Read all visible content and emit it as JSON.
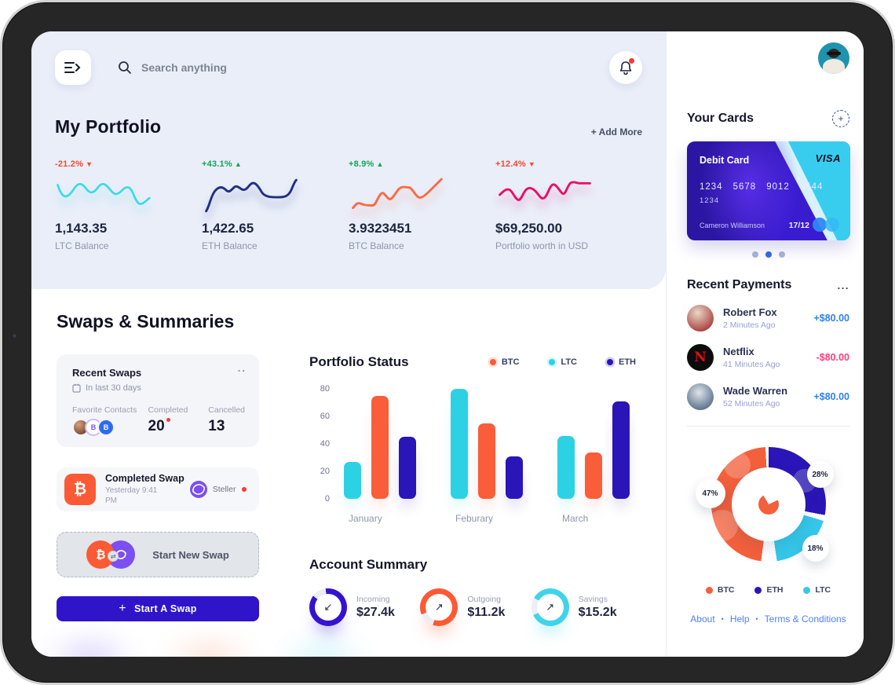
{
  "topbar": {
    "search_placeholder": "Search anything"
  },
  "portfolio": {
    "title": "My Portfolio",
    "add_more": "+ Add More",
    "assets": [
      {
        "change": "-21.2%",
        "arrow": "▼",
        "direction": "down",
        "value": "1,143.35",
        "label": "LTC Balance",
        "color": "#3fd9e8"
      },
      {
        "change": "+43.1%",
        "arrow": "▲",
        "direction": "up",
        "value": "1,422.65",
        "label": "ETH Balance",
        "color": "#203181"
      },
      {
        "change": "+8.9%",
        "arrow": "▲",
        "direction": "up",
        "value": "3.9323451",
        "label": "BTC Balance",
        "color": "#fb6a45"
      },
      {
        "change": "+12.4%",
        "arrow": "▼",
        "direction": "down",
        "value": "$69,250.00",
        "label": "Portfolio worth in USD",
        "color": "#e81069"
      }
    ]
  },
  "swaps": {
    "title": "Swaps & Summaries",
    "recent": {
      "title": "Recent Swaps",
      "menu": "..",
      "period": "In last 30 days",
      "favorites_label": "Favorite Contacts",
      "contact_initials": [
        "B",
        "B"
      ],
      "completed_label": "Completed",
      "completed_value": "20",
      "cancelled_label": "Cancelled",
      "cancelled_value": "13"
    },
    "completed_swap": {
      "icon": "₿",
      "title": "Completed Swap",
      "time": "Yesterday 9:41 PM",
      "network": "Steller"
    },
    "start_new": {
      "label": "Start New Swap",
      "coin_a": "₿",
      "swap_glyph": "⇄"
    },
    "cta": {
      "plus": "+",
      "label": "Start A Swap",
      "bg": "#2f14ca"
    }
  },
  "chart_data": [
    {
      "type": "bar",
      "title": "Portfolio Status",
      "categories": [
        "January",
        "Feburary",
        "March"
      ],
      "series": [
        {
          "name": "LTC",
          "color": "#2cd2e4",
          "values": [
            27,
            80,
            46
          ]
        },
        {
          "name": "BTC",
          "color": "#f95d39",
          "values": [
            75,
            55,
            34
          ]
        },
        {
          "name": "ETH",
          "color": "#2a15b8",
          "values": [
            45,
            31,
            71
          ]
        }
      ],
      "legend": [
        {
          "label": "BTC",
          "color": "#f95d39"
        },
        {
          "label": "LTC",
          "color": "#2cd2e4"
        },
        {
          "label": "ETH",
          "color": "#2a15b8"
        }
      ],
      "xlabel": "",
      "ylabel": "",
      "ylim": [
        0,
        80
      ],
      "yticks": [
        80,
        60,
        40,
        20,
        0
      ],
      "grid": false,
      "legend_position": "top-right"
    },
    {
      "type": "pie",
      "title": "",
      "slices": [
        {
          "label": "BTC",
          "value": 47,
          "color": "#f4603c"
        },
        {
          "label": "ETH",
          "value": 28,
          "color": "#2a15b8"
        },
        {
          "label": "LTC",
          "value": 18,
          "color": "#35c8ea"
        }
      ],
      "legend_position": "bottom"
    }
  ],
  "account_summary": {
    "title": "Account Summary",
    "items": [
      {
        "label": "Incoming",
        "value": "$27.4k",
        "arrow": "↙",
        "color": "#3512cf"
      },
      {
        "label": "Outgoing",
        "value": "$11.2k",
        "arrow": "↗",
        "color": "#fb5a35"
      },
      {
        "label": "Savings",
        "value": "$15.2k",
        "arrow": "↗",
        "color": "#3fd4ea"
      }
    ]
  },
  "sidebar": {
    "your_cards": "Your Cards",
    "card": {
      "type": "Debit Card",
      "brand": "VISA",
      "number": [
        "1234",
        "5678",
        "9012",
        "3544"
      ],
      "number_line2": "1234",
      "holder": "Cameron Williamson",
      "expiry": "17/12"
    },
    "carousel": {
      "count": 3,
      "active": 1
    },
    "payments": {
      "title": "Recent Payments",
      "menu": "...",
      "rows": [
        {
          "name": "Robert Fox",
          "time": "2 Minutes Ago",
          "amount": "+$80.00",
          "direction": "positive"
        },
        {
          "name": "Netflix",
          "time": "41 Minutes Ago",
          "amount": "-$80.00",
          "direction": "negative",
          "icon_letter": "N"
        },
        {
          "name": "Wade Warren",
          "time": "52 Minutes Ago",
          "amount": "+$80.00",
          "direction": "positive"
        }
      ],
      "amount_colors": {
        "positive": "#2f80ed",
        "negative": "#fb3e7a"
      }
    },
    "footer": {
      "links": [
        "About",
        "Help",
        "Terms & Conditions"
      ],
      "separator": "•"
    }
  }
}
